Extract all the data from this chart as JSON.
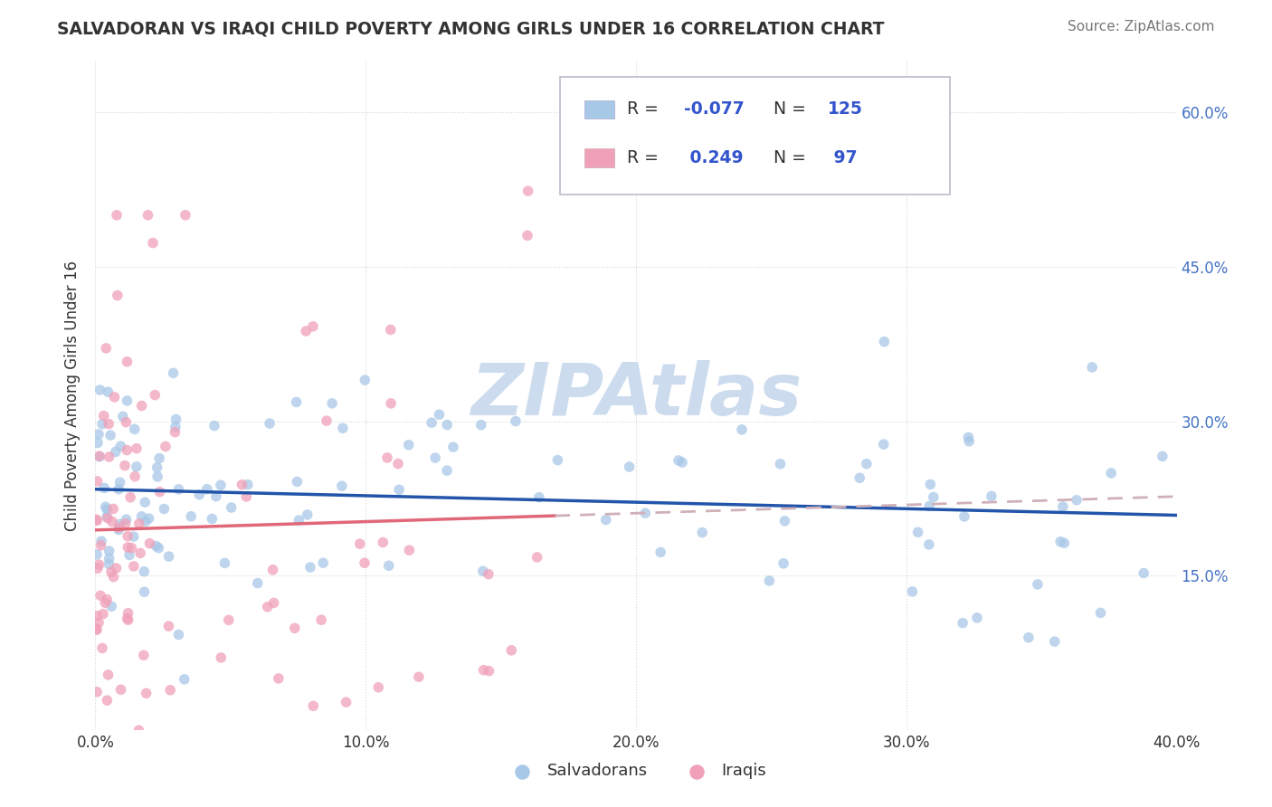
{
  "title": "SALVADORAN VS IRAQI CHILD POVERTY AMONG GIRLS UNDER 16 CORRELATION CHART",
  "source": "Source: ZipAtlas.com",
  "ylabel": "Child Poverty Among Girls Under 16",
  "xlim": [
    0.0,
    0.4
  ],
  "ylim": [
    0.0,
    0.65
  ],
  "xticks": [
    0.0,
    0.1,
    0.2,
    0.3,
    0.4
  ],
  "xticklabels": [
    "0.0%",
    "10.0%",
    "20.0%",
    "30.0%",
    "40.0%"
  ],
  "yticks_right": [
    0.15,
    0.3,
    0.45,
    0.6
  ],
  "yticklabels_right": [
    "15.0%",
    "30.0%",
    "45.0%",
    "60.0%"
  ],
  "salvadoran_color": "#a8c8e8",
  "iraqi_color": "#f0a0b8",
  "trendline_salvadoran_color": "#2255aa",
  "trendline_iraqi_color": "#e06878",
  "trendline_iraqi_extrap_color": "#d0b0b8",
  "r_salvadoran": -0.077,
  "n_salvadoran": 125,
  "r_iraqi": 0.249,
  "n_iraqi": 97,
  "background_color": "#ffffff",
  "grid_color": "#cccccc",
  "watermark": "ZIPAtlas",
  "watermark_color": "#ccdcee",
  "legend_label_salvadoran": "Salvadorans",
  "legend_label_iraqi": "Iraqis",
  "title_color": "#333333",
  "source_color": "#777777",
  "axis_color": "#333333",
  "right_axis_color": "#4472c4",
  "legend_r_color": "#333333",
  "legend_val_color": "#3355cc"
}
